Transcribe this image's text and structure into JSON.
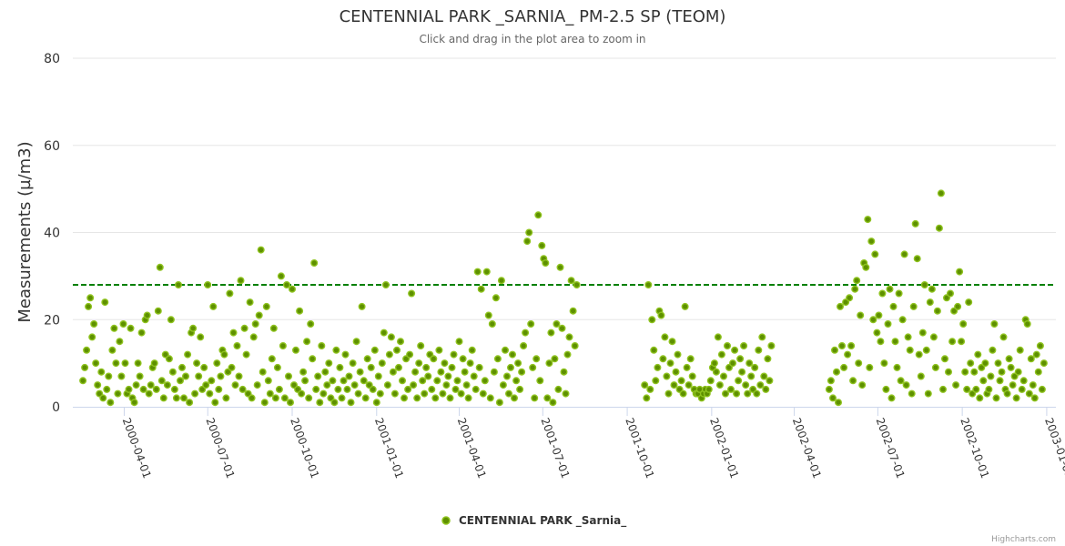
{
  "chart_data": {
    "type": "scatter",
    "title": "CENTENNIAL PARK _SARNIA_ PM-2.5 SP (TEOM)",
    "subtitle": "Click and drag in the plot area to zoom in",
    "xlabel": "",
    "ylabel": "Measurements (µ/m3)",
    "ylim": [
      0,
      80
    ],
    "yticks": [
      "0",
      "20",
      "40",
      "60",
      "80"
    ],
    "xlim": [
      "2000-02-05",
      "2003-01-11"
    ],
    "xticks": [
      "2000-04-01",
      "2000-07-01",
      "2000-10-01",
      "2001-01-01",
      "2001-04-01",
      "2001-07-01",
      "2001-10-01",
      "2002-01-01",
      "2002-04-01",
      "2002-07-01",
      "2002-10-01",
      "2003-01-01"
    ],
    "grid": true,
    "legend_position": "bottom-center",
    "threshold": {
      "value": 28,
      "color": "#008000",
      "style": "dashed"
    },
    "colors": {
      "point_fill": "#5e9000",
      "point_stroke": "#8fc31f"
    },
    "series": [
      {
        "name": "CENTENNIAL PARK _Sarnia_",
        "segments": [
          {
            "start": "2000-02-16",
            "step_days": 2,
            "values": [
              6,
              9,
              13,
              23,
              25,
              16,
              19,
              10,
              5,
              3,
              8,
              2,
              24,
              4,
              7,
              1,
              13,
              18,
              10,
              3,
              15,
              7,
              19,
              10,
              3,
              4,
              18,
              2,
              1,
              5,
              10,
              7,
              17,
              4,
              20,
              21,
              3,
              5,
              9,
              10,
              4,
              22,
              32,
              6,
              2,
              12,
              5,
              11,
              20,
              8,
              4,
              2,
              28,
              6,
              9,
              2,
              7,
              12,
              1,
              17,
              18,
              3,
              10,
              7,
              16,
              4,
              9,
              5,
              28,
              3,
              6,
              23,
              1,
              10,
              4,
              7,
              13,
              12,
              2,
              8,
              26,
              9,
              17,
              5,
              14,
              7,
              29,
              4,
              18,
              12,
              3,
              24,
              2,
              16,
              19,
              5,
              21,
              36,
              8,
              1,
              23,
              6,
              3,
              11,
              18,
              2,
              9,
              4,
              30,
              14,
              2,
              28,
              7,
              1,
              27,
              5,
              13,
              4,
              22,
              3,
              8,
              6,
              15,
              2,
              19,
              11,
              33,
              4,
              7,
              1,
              14,
              3,
              8,
              5,
              10,
              2,
              6,
              1,
              13,
              4,
              9,
              2,
              6,
              12,
              4,
              7,
              1,
              10,
              5,
              15,
              3,
              8,
              23,
              6,
              2,
              11,
              5,
              9,
              4,
              13,
              1,
              7,
              3,
              10,
              17,
              28,
              5,
              12,
              16,
              8,
              3,
              13,
              9,
              15,
              6,
              2,
              11,
              4,
              12,
              26,
              5,
              8,
              2,
              10,
              14,
              6,
              3,
              9,
              7,
              12,
              4,
              11,
              2,
              6,
              13,
              8,
              3,
              10,
              5,
              7,
              2,
              9,
              12,
              4,
              6,
              15,
              3,
              11,
              8,
              5,
              2,
              10,
              13,
              7,
              4,
              31,
              9,
              27,
              3,
              6,
              31,
              21,
              2,
              19,
              8,
              25,
              11,
              1,
              29,
              5,
              13,
              7,
              3,
              9,
              12,
              2,
              6,
              10,
              4,
              8,
              14,
              17,
              38,
              40,
              19,
              9,
              2,
              11,
              44,
              6,
              37,
              34,
              33,
              2,
              10,
              17,
              1,
              11,
              19,
              4,
              32,
              18,
              8,
              3,
              12,
              16,
              29,
              22,
              14,
              28
            ]
          },
          {
            "start": "2001-10-20",
            "step_days": 2,
            "values": [
              5,
              2,
              28,
              4,
              20,
              13,
              6,
              9,
              22,
              21,
              11,
              16,
              7,
              3,
              10,
              15,
              5,
              8,
              12,
              4,
              6,
              3,
              23,
              9,
              5,
              11,
              7,
              4,
              3,
              3,
              4,
              2,
              3,
              4,
              3,
              4,
              6,
              9,
              10,
              8,
              16,
              5,
              12,
              7,
              3,
              14,
              9,
              4,
              10,
              13,
              3,
              6,
              11,
              8,
              14,
              5,
              3,
              10,
              7,
              4,
              9,
              3,
              13,
              5,
              16,
              7,
              4,
              11,
              6,
              14
            ]
          },
          {
            "start": "2002-05-09",
            "step_days": 2,
            "values": [
              4,
              6,
              2,
              13,
              8,
              1,
              23,
              14,
              9,
              24,
              12,
              25,
              14,
              6,
              27,
              29,
              10,
              21,
              5,
              33,
              32,
              43,
              9,
              38,
              20,
              35,
              17,
              21,
              15,
              26,
              10,
              4,
              19,
              27,
              2,
              23,
              15,
              9,
              26,
              6,
              20,
              35,
              5,
              16,
              13,
              3,
              23,
              42,
              34,
              12,
              7,
              17,
              28,
              13,
              3,
              24,
              27,
              16,
              9,
              22,
              41,
              49,
              4,
              11,
              25,
              8,
              26,
              15,
              22,
              5,
              23,
              31,
              15,
              19,
              8,
              4,
              24,
              10,
              3,
              8,
              4,
              12,
              2,
              9,
              6,
              10,
              3,
              4,
              7,
              13,
              19,
              2,
              10,
              6,
              8,
              16,
              4,
              3,
              11,
              9,
              5,
              7,
              2,
              8,
              13,
              4,
              6,
              20,
              19,
              3,
              11,
              5,
              2,
              12,
              8,
              14,
              4,
              10
            ]
          }
        ]
      }
    ],
    "credits": "Highcharts.com"
  }
}
